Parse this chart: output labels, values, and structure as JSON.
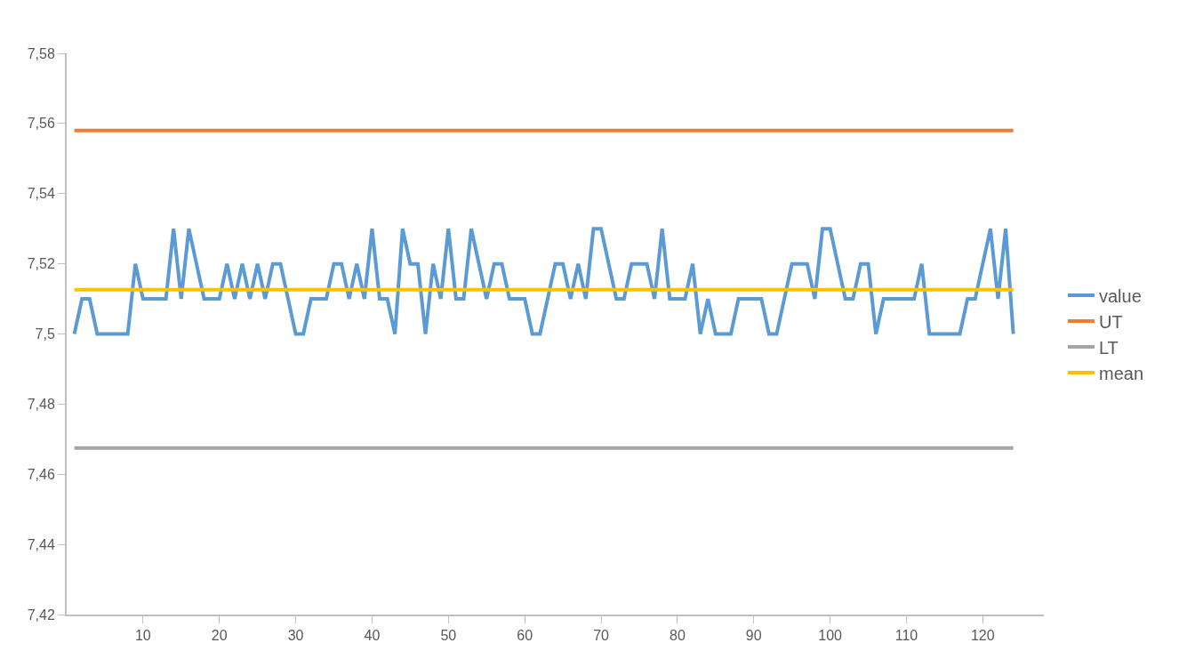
{
  "chart_data": {
    "type": "line",
    "x": [
      1,
      2,
      3,
      4,
      5,
      6,
      7,
      8,
      9,
      10,
      11,
      12,
      13,
      14,
      15,
      16,
      17,
      18,
      19,
      20,
      21,
      22,
      23,
      24,
      25,
      26,
      27,
      28,
      29,
      30,
      31,
      32,
      33,
      34,
      35,
      36,
      37,
      38,
      39,
      40,
      41,
      42,
      43,
      44,
      45,
      46,
      47,
      48,
      49,
      50,
      51,
      52,
      53,
      54,
      55,
      56,
      57,
      58,
      59,
      60,
      61,
      62,
      63,
      64,
      65,
      66,
      67,
      68,
      69,
      70,
      71,
      72,
      73,
      74,
      75,
      76,
      77,
      78,
      79,
      80,
      81,
      82,
      83,
      84,
      85,
      86,
      87,
      88,
      89,
      90,
      91,
      92,
      93,
      94,
      95,
      96,
      97,
      98,
      99,
      100,
      101,
      102,
      103,
      104,
      105,
      106,
      107,
      108,
      109,
      110,
      111,
      112,
      113,
      114,
      115,
      116,
      117,
      118,
      119,
      120,
      121,
      122,
      123,
      124
    ],
    "series": [
      {
        "name": "value",
        "color": "#5b9bd5",
        "values": [
          7.5,
          7.51,
          7.51,
          7.5,
          7.5,
          7.5,
          7.5,
          7.5,
          7.52,
          7.51,
          7.51,
          7.51,
          7.51,
          7.53,
          7.51,
          7.53,
          7.52,
          7.51,
          7.51,
          7.51,
          7.52,
          7.51,
          7.52,
          7.51,
          7.52,
          7.51,
          7.52,
          7.52,
          7.51,
          7.5,
          7.5,
          7.51,
          7.51,
          7.51,
          7.52,
          7.52,
          7.51,
          7.52,
          7.51,
          7.53,
          7.51,
          7.51,
          7.5,
          7.53,
          7.52,
          7.52,
          7.5,
          7.52,
          7.51,
          7.53,
          7.51,
          7.51,
          7.53,
          7.52,
          7.51,
          7.52,
          7.52,
          7.51,
          7.51,
          7.51,
          7.5,
          7.5,
          7.51,
          7.52,
          7.52,
          7.51,
          7.52,
          7.51,
          7.53,
          7.53,
          7.52,
          7.51,
          7.51,
          7.52,
          7.52,
          7.52,
          7.51,
          7.53,
          7.51,
          7.51,
          7.51,
          7.52,
          7.5,
          7.51,
          7.5,
          7.5,
          7.5,
          7.51,
          7.51,
          7.51,
          7.51,
          7.5,
          7.5,
          7.51,
          7.52,
          7.52,
          7.52,
          7.51,
          7.53,
          7.53,
          7.52,
          7.51,
          7.51,
          7.52,
          7.52,
          7.5,
          7.51,
          7.51,
          7.51,
          7.51,
          7.51,
          7.52,
          7.5,
          7.5,
          7.5,
          7.5,
          7.5,
          7.51,
          7.51,
          7.52,
          7.53,
          7.51,
          7.53,
          7.5
        ]
      },
      {
        "name": "UT",
        "color": "#ed7d31",
        "values": [
          7.558,
          7.558,
          7.558,
          7.558,
          7.558,
          7.558,
          7.558,
          7.558,
          7.558,
          7.558,
          7.558,
          7.558,
          7.558,
          7.558,
          7.558,
          7.558,
          7.558,
          7.558,
          7.558,
          7.558,
          7.558,
          7.558,
          7.558,
          7.558,
          7.558,
          7.558,
          7.558,
          7.558,
          7.558,
          7.558,
          7.558,
          7.558,
          7.558,
          7.558,
          7.558,
          7.558,
          7.558,
          7.558,
          7.558,
          7.558,
          7.558,
          7.558,
          7.558,
          7.558,
          7.558,
          7.558,
          7.558,
          7.558,
          7.558,
          7.558,
          7.558,
          7.558,
          7.558,
          7.558,
          7.558,
          7.558,
          7.558,
          7.558,
          7.558,
          7.558,
          7.558,
          7.558,
          7.558,
          7.558,
          7.558,
          7.558,
          7.558,
          7.558,
          7.558,
          7.558,
          7.558,
          7.558,
          7.558,
          7.558,
          7.558,
          7.558,
          7.558,
          7.558,
          7.558,
          7.558,
          7.558,
          7.558,
          7.558,
          7.558,
          7.558,
          7.558,
          7.558,
          7.558,
          7.558,
          7.558,
          7.558,
          7.558,
          7.558,
          7.558,
          7.558,
          7.558,
          7.558,
          7.558,
          7.558,
          7.558,
          7.558,
          7.558,
          7.558,
          7.558,
          7.558,
          7.558,
          7.558,
          7.558,
          7.558,
          7.558,
          7.558,
          7.558,
          7.558,
          7.558,
          7.558,
          7.558,
          7.558,
          7.558,
          7.558,
          7.558,
          7.558,
          7.558,
          7.558,
          7.558
        ]
      },
      {
        "name": "LT",
        "color": "#a5a5a5",
        "values": [
          7.4675,
          7.4675,
          7.4675,
          7.4675,
          7.4675,
          7.4675,
          7.4675,
          7.4675,
          7.4675,
          7.4675,
          7.4675,
          7.4675,
          7.4675,
          7.4675,
          7.4675,
          7.4675,
          7.4675,
          7.4675,
          7.4675,
          7.4675,
          7.4675,
          7.4675,
          7.4675,
          7.4675,
          7.4675,
          7.4675,
          7.4675,
          7.4675,
          7.4675,
          7.4675,
          7.4675,
          7.4675,
          7.4675,
          7.4675,
          7.4675,
          7.4675,
          7.4675,
          7.4675,
          7.4675,
          7.4675,
          7.4675,
          7.4675,
          7.4675,
          7.4675,
          7.4675,
          7.4675,
          7.4675,
          7.4675,
          7.4675,
          7.4675,
          7.4675,
          7.4675,
          7.4675,
          7.4675,
          7.4675,
          7.4675,
          7.4675,
          7.4675,
          7.4675,
          7.4675,
          7.4675,
          7.4675,
          7.4675,
          7.4675,
          7.4675,
          7.4675,
          7.4675,
          7.4675,
          7.4675,
          7.4675,
          7.4675,
          7.4675,
          7.4675,
          7.4675,
          7.4675,
          7.4675,
          7.4675,
          7.4675,
          7.4675,
          7.4675,
          7.4675,
          7.4675,
          7.4675,
          7.4675,
          7.4675,
          7.4675,
          7.4675,
          7.4675,
          7.4675,
          7.4675,
          7.4675,
          7.4675,
          7.4675,
          7.4675,
          7.4675,
          7.4675,
          7.4675,
          7.4675,
          7.4675,
          7.4675,
          7.4675,
          7.4675,
          7.4675,
          7.4675,
          7.4675,
          7.4675,
          7.4675,
          7.4675,
          7.4675,
          7.4675,
          7.4675,
          7.4675,
          7.4675,
          7.4675,
          7.4675,
          7.4675,
          7.4675,
          7.4675,
          7.4675,
          7.4675,
          7.4675,
          7.4675,
          7.4675,
          7.4675
        ]
      },
      {
        "name": "mean",
        "color": "#ffc000",
        "values": [
          7.5126,
          7.5126,
          7.5126,
          7.5126,
          7.5126,
          7.5126,
          7.5126,
          7.5126,
          7.5126,
          7.5126,
          7.5126,
          7.5126,
          7.5126,
          7.5126,
          7.5126,
          7.5126,
          7.5126,
          7.5126,
          7.5126,
          7.5126,
          7.5126,
          7.5126,
          7.5126,
          7.5126,
          7.5126,
          7.5126,
          7.5126,
          7.5126,
          7.5126,
          7.5126,
          7.5126,
          7.5126,
          7.5126,
          7.5126,
          7.5126,
          7.5126,
          7.5126,
          7.5126,
          7.5126,
          7.5126,
          7.5126,
          7.5126,
          7.5126,
          7.5126,
          7.5126,
          7.5126,
          7.5126,
          7.5126,
          7.5126,
          7.5126,
          7.5126,
          7.5126,
          7.5126,
          7.5126,
          7.5126,
          7.5126,
          7.5126,
          7.5126,
          7.5126,
          7.5126,
          7.5126,
          7.5126,
          7.5126,
          7.5126,
          7.5126,
          7.5126,
          7.5126,
          7.5126,
          7.5126,
          7.5126,
          7.5126,
          7.5126,
          7.5126,
          7.5126,
          7.5126,
          7.5126,
          7.5126,
          7.5126,
          7.5126,
          7.5126,
          7.5126,
          7.5126,
          7.5126,
          7.5126,
          7.5126,
          7.5126,
          7.5126,
          7.5126,
          7.5126,
          7.5126,
          7.5126,
          7.5126,
          7.5126,
          7.5126,
          7.5126,
          7.5126,
          7.5126,
          7.5126,
          7.5126,
          7.5126,
          7.5126,
          7.5126,
          7.5126,
          7.5126,
          7.5126,
          7.5126,
          7.5126,
          7.5126,
          7.5126,
          7.5126,
          7.5126,
          7.5126,
          7.5126,
          7.5126,
          7.5126,
          7.5126,
          7.5126,
          7.5126,
          7.5126,
          7.5126,
          7.5126,
          7.5126,
          7.5126,
          7.5126
        ]
      }
    ],
    "xlim": [
      0,
      128
    ],
    "xticks": [
      10,
      20,
      30,
      40,
      50,
      60,
      70,
      80,
      90,
      100,
      110,
      120
    ],
    "ylim": [
      7.42,
      7.58
    ],
    "yticks": [
      {
        "value": 7.42,
        "label": "7,42"
      },
      {
        "value": 7.44,
        "label": "7,44"
      },
      {
        "value": 7.46,
        "label": "7,46"
      },
      {
        "value": 7.48,
        "label": "7,48"
      },
      {
        "value": 7.5,
        "label": "7,5"
      },
      {
        "value": 7.52,
        "label": "7,52"
      },
      {
        "value": 7.54,
        "label": "7,54"
      },
      {
        "value": 7.56,
        "label": "7,56"
      },
      {
        "value": 7.58,
        "label": "7,58"
      }
    ],
    "legend": "right",
    "marker": "none",
    "line_style": "solid"
  }
}
